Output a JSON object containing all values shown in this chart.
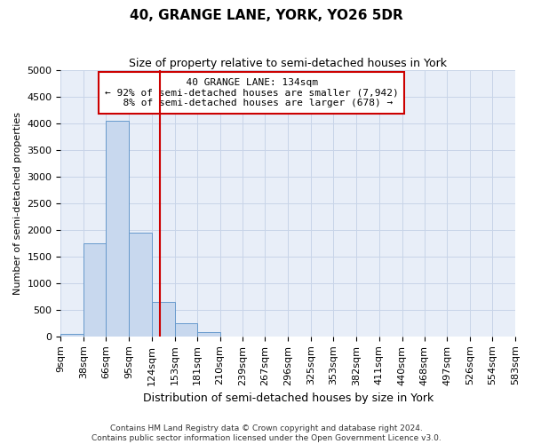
{
  "title": "40, GRANGE LANE, YORK, YO26 5DR",
  "subtitle": "Size of property relative to semi-detached houses in York",
  "xlabel": "Distribution of semi-detached houses by size in York",
  "ylabel": "Number of semi-detached properties",
  "property_size": 134,
  "property_label": "40 GRANGE LANE: 134sqm",
  "pct_smaller": 92,
  "count_smaller": 7942,
  "pct_larger": 8,
  "count_larger": 678,
  "footer_line1": "Contains HM Land Registry data © Crown copyright and database right 2024.",
  "footer_line2": "Contains public sector information licensed under the Open Government Licence v3.0.",
  "bin_edges": [
    9,
    38,
    66,
    95,
    124,
    153,
    181,
    210,
    239,
    267,
    296,
    325,
    353,
    382,
    411,
    440,
    468,
    497,
    526,
    554,
    583
  ],
  "bin_counts": [
    50,
    1750,
    4050,
    1950,
    650,
    240,
    80,
    0,
    0,
    0,
    0,
    0,
    0,
    0,
    0,
    0,
    0,
    0,
    0,
    0
  ],
  "bar_color": "#c8d8ee",
  "bar_edge_color": "#6699cc",
  "vline_color": "#cc0000",
  "annotation_box_color": "#ffffff",
  "annotation_box_edge_color": "#cc0000",
  "grid_color": "#c8d4e8",
  "background_color": "#ffffff",
  "plot_bg_color": "#e8eef8",
  "ylim": [
    0,
    5000
  ],
  "yticks": [
    0,
    500,
    1000,
    1500,
    2000,
    2500,
    3000,
    3500,
    4000,
    4500,
    5000
  ],
  "title_fontsize": 11,
  "subtitle_fontsize": 9,
  "ylabel_fontsize": 8,
  "xlabel_fontsize": 9,
  "tick_fontsize": 8,
  "ann_fontsize": 8,
  "footer_fontsize": 6.5
}
